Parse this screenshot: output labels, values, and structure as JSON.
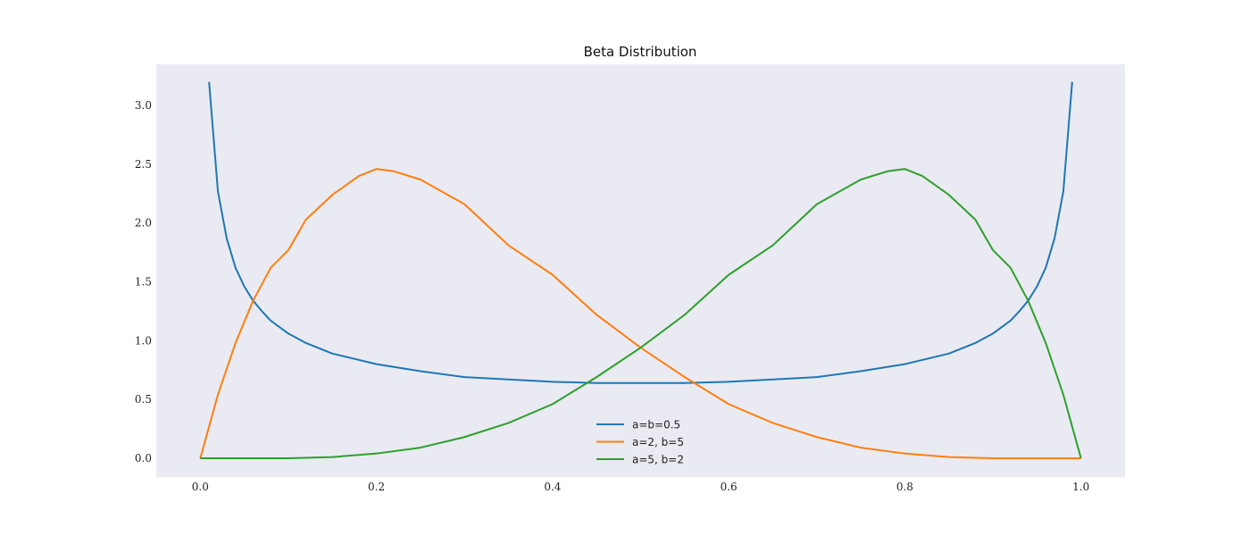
{
  "chart_data": {
    "type": "line",
    "title": "Beta Distribution",
    "xlabel": "",
    "ylabel": "",
    "xlim": [
      -0.05,
      1.05
    ],
    "ylim": [
      -0.16,
      3.35
    ],
    "xticks": [
      "0.0",
      "0.2",
      "0.4",
      "0.6",
      "0.8",
      "1.0"
    ],
    "xtick_values": [
      0.0,
      0.2,
      0.4,
      0.6,
      0.8,
      1.0
    ],
    "yticks": [
      "0.0",
      "0.5",
      "1.0",
      "1.5",
      "2.0",
      "2.5",
      "3.0"
    ],
    "ytick_values": [
      0.0,
      0.5,
      1.0,
      1.5,
      2.0,
      2.5,
      3.0
    ],
    "grid": false,
    "legend_position": "bottom-center",
    "background": "#eaeaf2",
    "series": [
      {
        "name": "a=b=0.5",
        "color": "#1f77b4",
        "x": [
          0.01,
          0.02,
          0.03,
          0.04,
          0.05,
          0.06,
          0.07,
          0.08,
          0.1,
          0.12,
          0.15,
          0.2,
          0.25,
          0.3,
          0.35,
          0.4,
          0.45,
          0.5,
          0.55,
          0.6,
          0.65,
          0.7,
          0.75,
          0.8,
          0.85,
          0.88,
          0.9,
          0.92,
          0.93,
          0.94,
          0.95,
          0.96,
          0.97,
          0.98,
          0.99
        ],
        "y": [
          3.2,
          2.27,
          1.87,
          1.62,
          1.46,
          1.34,
          1.25,
          1.17,
          1.06,
          0.98,
          0.89,
          0.8,
          0.74,
          0.69,
          0.67,
          0.65,
          0.64,
          0.64,
          0.64,
          0.65,
          0.67,
          0.69,
          0.74,
          0.8,
          0.89,
          0.98,
          1.06,
          1.17,
          1.25,
          1.34,
          1.46,
          1.62,
          1.87,
          2.27,
          3.2
        ]
      },
      {
        "name": "a=2, b=5",
        "color": "#ff7f0e",
        "x": [
          0.0,
          0.02,
          0.04,
          0.06,
          0.08,
          0.1,
          0.12,
          0.15,
          0.18,
          0.2,
          0.22,
          0.25,
          0.3,
          0.35,
          0.4,
          0.45,
          0.5,
          0.55,
          0.6,
          0.65,
          0.7,
          0.75,
          0.8,
          0.85,
          0.9,
          0.95,
          1.0
        ],
        "y": [
          0.0,
          0.54,
          0.98,
          1.34,
          1.62,
          1.77,
          2.03,
          2.24,
          2.4,
          2.46,
          2.44,
          2.37,
          2.16,
          1.81,
          1.56,
          1.22,
          0.94,
          0.69,
          0.46,
          0.3,
          0.18,
          0.09,
          0.04,
          0.01,
          0.0,
          0.0,
          0.0
        ]
      },
      {
        "name": "a=5, b=2",
        "color": "#2ca02c",
        "x": [
          0.0,
          0.05,
          0.1,
          0.15,
          0.2,
          0.25,
          0.3,
          0.35,
          0.4,
          0.45,
          0.5,
          0.55,
          0.6,
          0.65,
          0.7,
          0.75,
          0.78,
          0.8,
          0.82,
          0.85,
          0.88,
          0.9,
          0.92,
          0.94,
          0.96,
          0.98,
          1.0
        ],
        "y": [
          0.0,
          0.0,
          0.0,
          0.01,
          0.04,
          0.09,
          0.18,
          0.3,
          0.46,
          0.69,
          0.94,
          1.22,
          1.56,
          1.81,
          2.16,
          2.37,
          2.44,
          2.46,
          2.4,
          2.24,
          2.03,
          1.77,
          1.62,
          1.34,
          0.98,
          0.54,
          0.0
        ]
      }
    ]
  }
}
